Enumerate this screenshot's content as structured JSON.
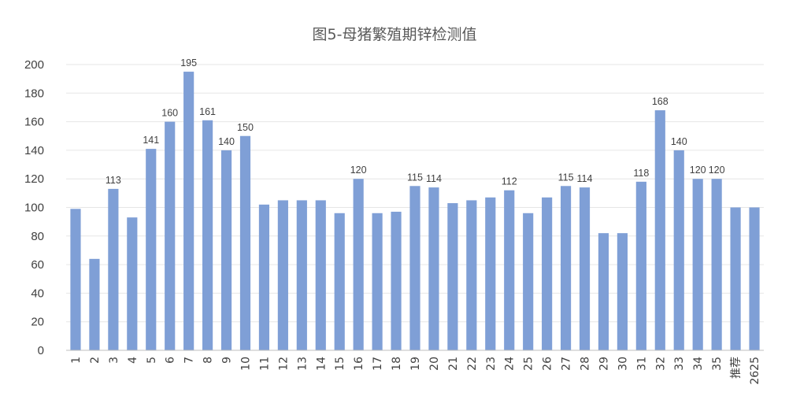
{
  "chart_data": {
    "type": "bar",
    "title": "图5-母猪繁殖期锌检测值",
    "xlabel": "",
    "ylabel": "",
    "ylim": [
      0,
      200
    ],
    "yticks": [
      0,
      20,
      40,
      60,
      80,
      100,
      120,
      140,
      160,
      180,
      200
    ],
    "grid": true,
    "legend": "none",
    "bar_color": "#7F9FD6",
    "categories": [
      "1",
      "2",
      "3",
      "4",
      "5",
      "6",
      "7",
      "8",
      "9",
      "10",
      "11",
      "12",
      "13",
      "14",
      "15",
      "16",
      "17",
      "18",
      "19",
      "20",
      "21",
      "22",
      "23",
      "24",
      "25",
      "26",
      "27",
      "28",
      "29",
      "30",
      "31",
      "32",
      "33",
      "34",
      "35",
      "推荐",
      "2625"
    ],
    "values": [
      99,
      64,
      113,
      93,
      141,
      160,
      195,
      161,
      140,
      150,
      102,
      105,
      105,
      105,
      96,
      120,
      96,
      97,
      115,
      114,
      103,
      105,
      107,
      112,
      96,
      107,
      115,
      114,
      82,
      82,
      118,
      168,
      140,
      120,
      120,
      100,
      100
    ],
    "data_labels": [
      "",
      "",
      "113",
      "",
      "141",
      "160",
      "195",
      "161",
      "140",
      "150",
      "",
      "",
      "",
      "",
      "",
      "120",
      "",
      "",
      "115",
      "114",
      "",
      "",
      "",
      "112",
      "",
      "",
      "115",
      "114",
      "",
      "",
      "118",
      "168",
      "140",
      "120",
      "120",
      "",
      ""
    ]
  }
}
